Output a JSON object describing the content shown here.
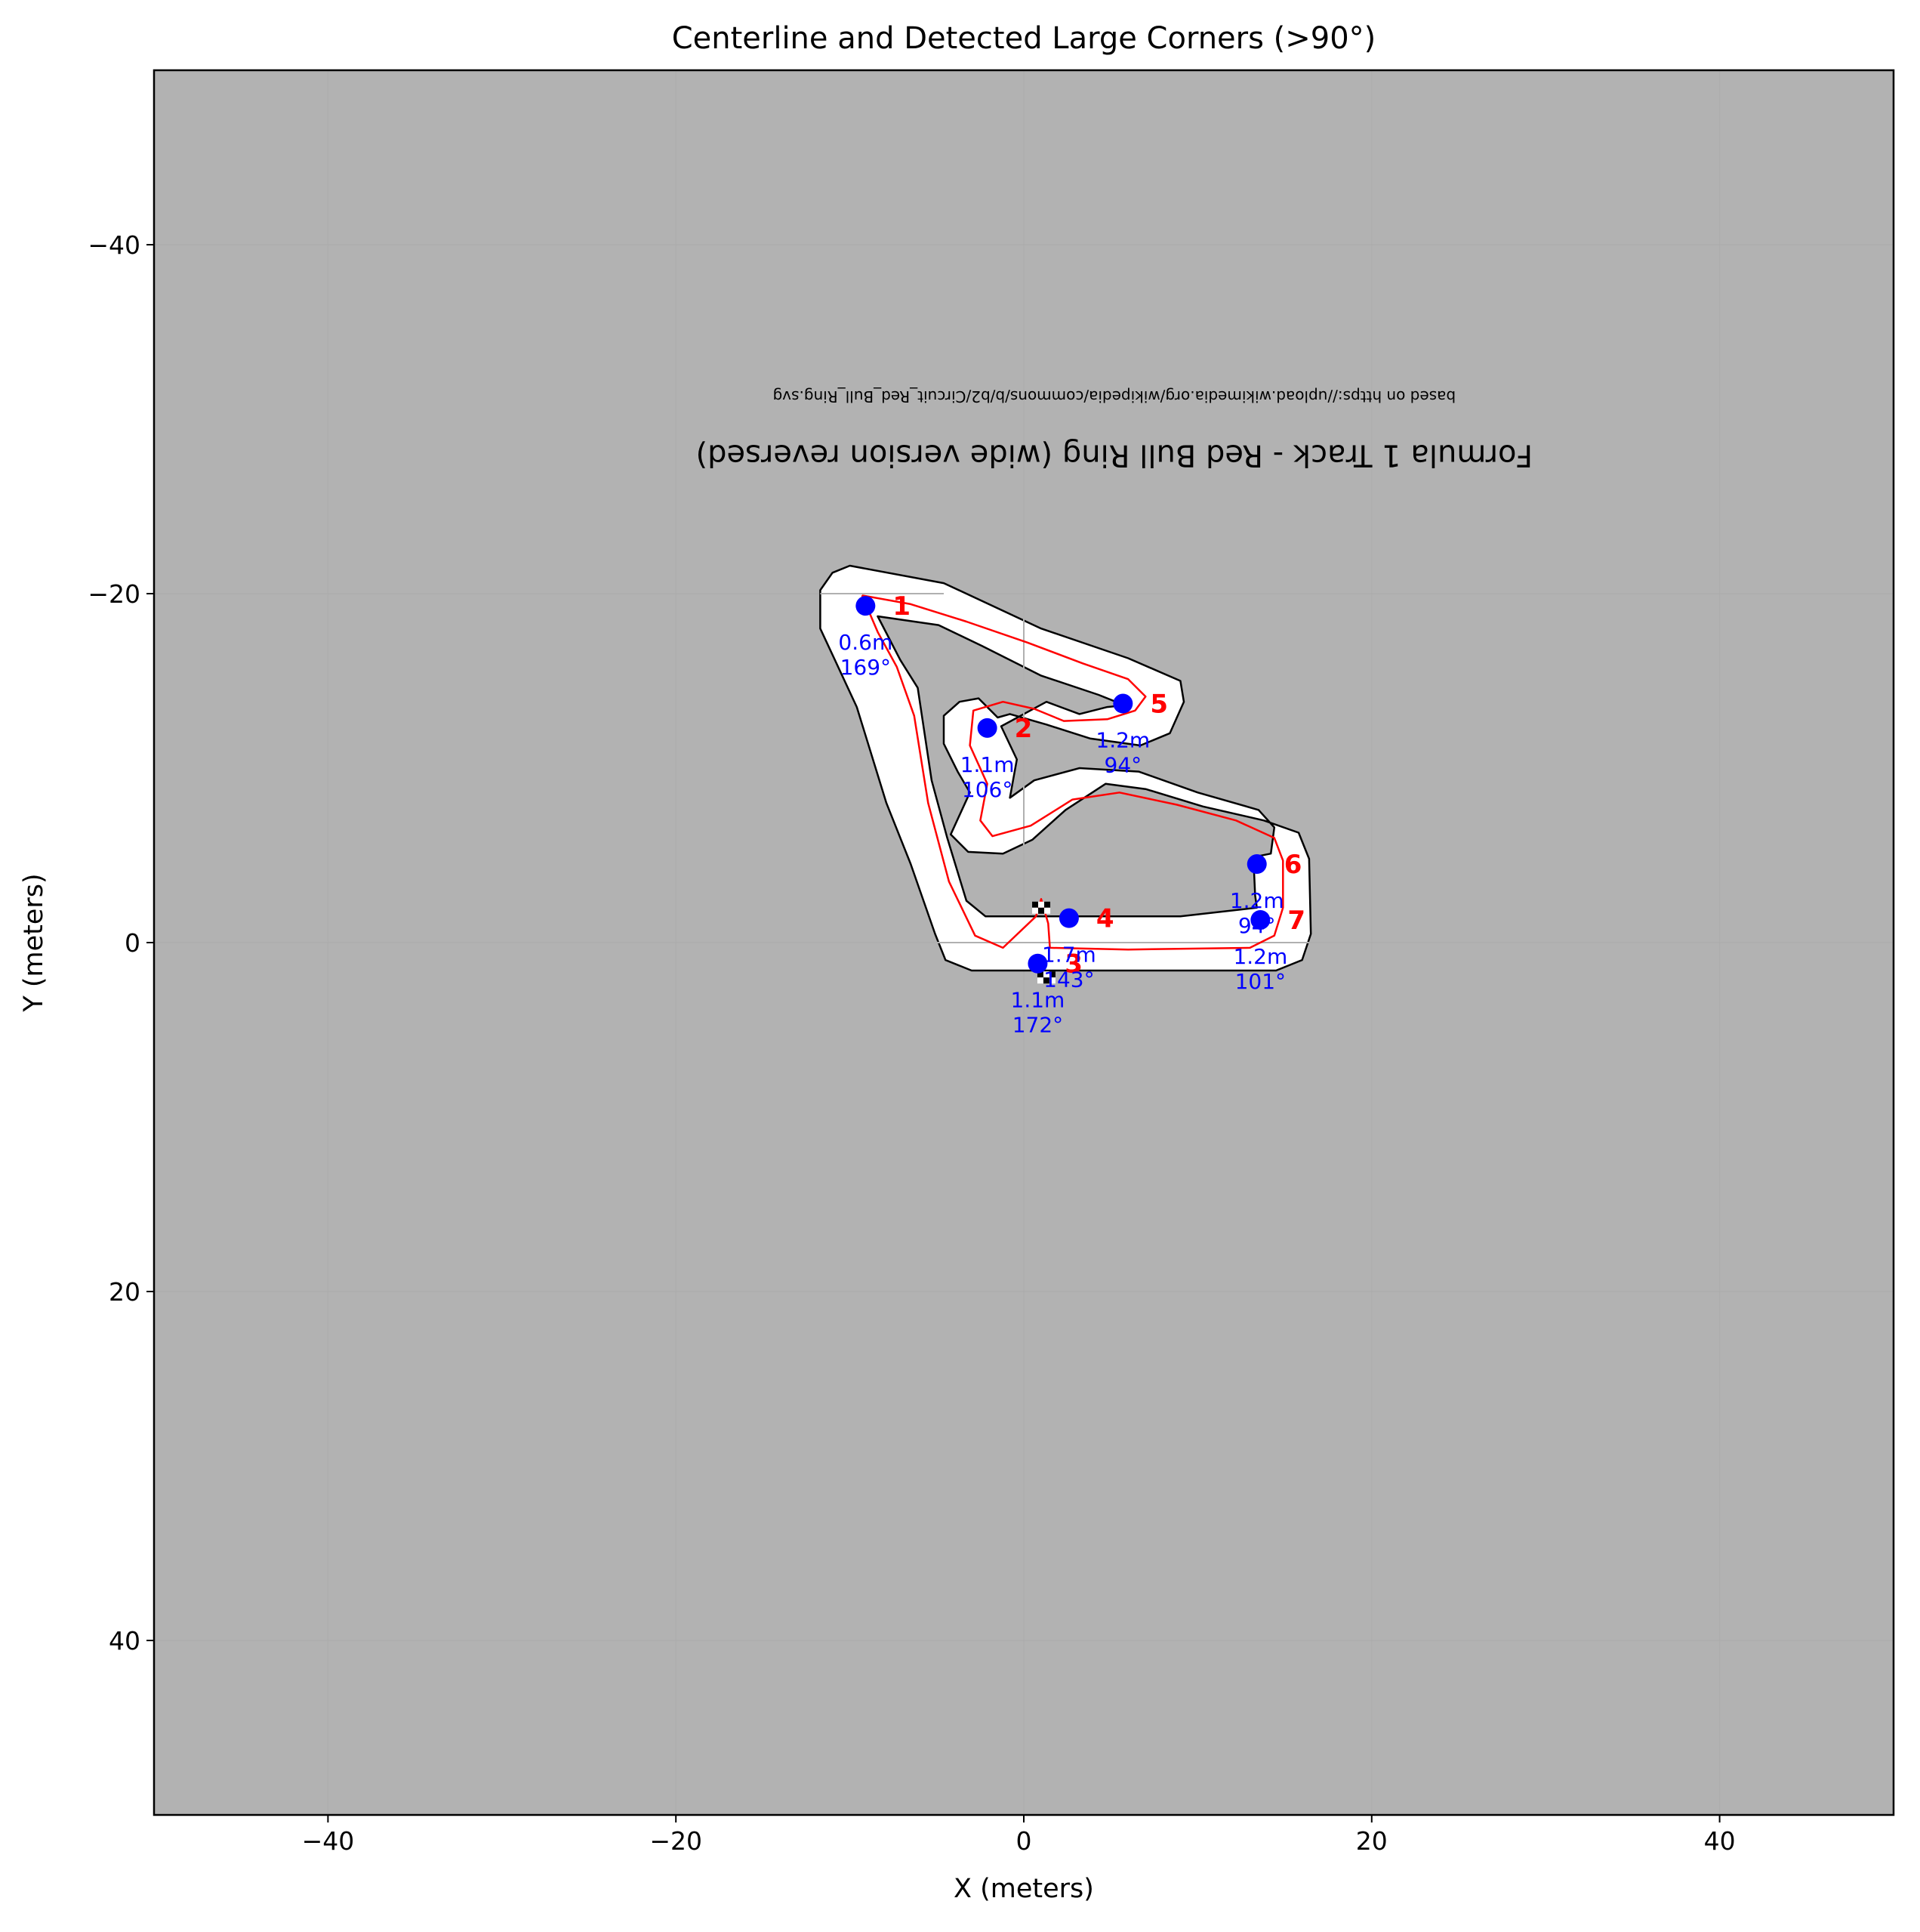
{
  "chart_data": {
    "type": "scatter",
    "title": "Centerline and Detected Large Corners (>90°)",
    "xlabel": "X (meters)",
    "ylabel": "Y (meters)",
    "xlim": [
      -50,
      50
    ],
    "ylim": [
      50,
      -50
    ],
    "y_inverted": true,
    "x_ticks": [
      -40,
      -20,
      0,
      20,
      40
    ],
    "y_ticks": [
      -40,
      -20,
      0,
      20,
      40
    ],
    "x_tick_labels": [
      "−40",
      "−20",
      "0",
      "20",
      "40"
    ],
    "y_tick_labels": [
      "−40",
      "−20",
      "0",
      "20",
      "40"
    ],
    "background_color": "#b2b2b2",
    "track_surface_color": "#ffffff",
    "track_edge_color": "#000000",
    "centerline_color": "#ff0000",
    "corner_point_color": "#0000ff",
    "corner_label_color": "#ff0000",
    "inset_title": "Formula 1 Track - Red Bull Ring (wide version reversed)",
    "inset_credit": "based on https://upload.wikimedia.org/wikipedia/commons/b/b2/Circuit_Red_Bull_Ring.svg",
    "track_outline": [
      [
        -11.7,
        -20.2
      ],
      [
        -11.0,
        -21.2
      ],
      [
        -10.0,
        -21.6
      ],
      [
        -4.6,
        -20.6
      ],
      [
        1.0,
        -18.0
      ],
      [
        6.0,
        -16.3
      ],
      [
        9.0,
        -15.0
      ],
      [
        9.2,
        -13.8
      ],
      [
        8.4,
        -12.0
      ],
      [
        6.7,
        -11.3
      ],
      [
        3.8,
        -11.7
      ],
      [
        1.3,
        -12.5
      ],
      [
        -0.8,
        -13.1
      ],
      [
        -1.5,
        -12.9
      ],
      [
        -2.6,
        -14.0
      ],
      [
        -3.7,
        -13.8
      ],
      [
        -4.6,
        -13.0
      ],
      [
        -4.6,
        -11.4
      ],
      [
        -3.8,
        -9.8
      ],
      [
        -3.1,
        -8.6
      ],
      [
        -4.2,
        -6.2
      ],
      [
        -3.2,
        -5.2
      ],
      [
        -1.2,
        -5.1
      ],
      [
        0.5,
        -5.9
      ],
      [
        2.4,
        -7.6
      ],
      [
        4.7,
        -9.1
      ],
      [
        7.0,
        -8.8
      ],
      [
        10.3,
        -7.8
      ],
      [
        13.8,
        -7.0
      ],
      [
        15.8,
        -6.3
      ],
      [
        16.4,
        -4.8
      ],
      [
        16.5,
        -0.5
      ],
      [
        16.0,
        1.0
      ],
      [
        14.5,
        1.6
      ],
      [
        5.0,
        1.6
      ],
      [
        -3.0,
        1.6
      ],
      [
        -4.5,
        1.0
      ],
      [
        -5.1,
        -0.5
      ],
      [
        -6.5,
        -4.5
      ],
      [
        -7.9,
        -8.0
      ],
      [
        -9.6,
        -13.5
      ],
      [
        -11.0,
        -16.5
      ],
      [
        -11.7,
        -18.0
      ],
      [
        -11.7,
        -20.2
      ]
    ],
    "track_inner_hole": [
      [
        -8.4,
        -18.7
      ],
      [
        -4.9,
        -18.2
      ],
      [
        -2.4,
        -17.0
      ],
      [
        1.0,
        -15.3
      ],
      [
        4.3,
        -14.2
      ],
      [
        5.8,
        -13.6
      ],
      [
        4.8,
        -13.5
      ],
      [
        3.2,
        -13.1
      ],
      [
        1.3,
        -13.8
      ],
      [
        -1.3,
        -12.4
      ],
      [
        -0.4,
        -10.5
      ],
      [
        -0.8,
        -8.3
      ],
      [
        0.6,
        -9.3
      ],
      [
        3.2,
        -10.0
      ],
      [
        6.6,
        -9.8
      ],
      [
        10.0,
        -8.6
      ],
      [
        13.5,
        -7.6
      ],
      [
        14.4,
        -6.6
      ],
      [
        14.2,
        -5.1
      ],
      [
        13.2,
        -4.9
      ],
      [
        13.3,
        -2.7
      ],
      [
        13.4,
        -2.0
      ],
      [
        9.0,
        -1.5
      ],
      [
        2.2,
        -1.5
      ],
      [
        -2.2,
        -1.5
      ],
      [
        -3.3,
        -2.4
      ],
      [
        -4.4,
        -6.0
      ],
      [
        -5.3,
        -9.3
      ],
      [
        -6.1,
        -14.6
      ],
      [
        -7.1,
        -16.2
      ],
      [
        -8.4,
        -18.7
      ]
    ],
    "centerline": [
      [
        -9.3,
        -19.9
      ],
      [
        -6.5,
        -19.4
      ],
      [
        -3.3,
        -18.4
      ],
      [
        0.2,
        -17.2
      ],
      [
        3.4,
        -16.0
      ],
      [
        6.0,
        -15.1
      ],
      [
        7.0,
        -14.1
      ],
      [
        6.4,
        -13.3
      ],
      [
        4.8,
        -12.8
      ],
      [
        2.3,
        -12.7
      ],
      [
        0.6,
        -13.4
      ],
      [
        -1.2,
        -13.8
      ],
      [
        -2.9,
        -13.3
      ],
      [
        -3.1,
        -11.3
      ],
      [
        -2.1,
        -9.1
      ],
      [
        -2.5,
        -7.0
      ],
      [
        -1.8,
        -6.1
      ],
      [
        0.4,
        -6.7
      ],
      [
        2.8,
        -8.2
      ],
      [
        5.5,
        -8.6
      ],
      [
        8.8,
        -7.9
      ],
      [
        12.2,
        -7.0
      ],
      [
        14.4,
        -6.0
      ],
      [
        14.9,
        -4.7
      ],
      [
        14.9,
        -2.0
      ],
      [
        14.4,
        -0.4
      ],
      [
        13.0,
        0.3
      ],
      [
        6.0,
        0.4
      ],
      [
        1.5,
        0.3
      ],
      [
        1.4,
        -1.1
      ],
      [
        1.0,
        -2.5
      ],
      [
        0.7,
        -1.5
      ],
      [
        -1.2,
        0.3
      ],
      [
        -2.8,
        -0.4
      ],
      [
        -4.3,
        -3.5
      ],
      [
        -5.5,
        -8.0
      ],
      [
        -6.3,
        -13.0
      ],
      [
        -7.3,
        -15.8
      ],
      [
        -8.4,
        -17.8
      ],
      [
        -9.3,
        -19.9
      ]
    ],
    "corners": [
      {
        "id": "1",
        "x": -9.1,
        "y": -19.3,
        "distance": "0.6m",
        "angle": "169°"
      },
      {
        "id": "2",
        "x": -2.1,
        "y": -12.3,
        "distance": "1.1m",
        "angle": "106°"
      },
      {
        "id": "3",
        "x": 0.8,
        "y": 1.2,
        "distance": "1.1m",
        "angle": "172°"
      },
      {
        "id": "4",
        "x": 2.6,
        "y": -1.4,
        "distance": "1.7m",
        "angle": "143°"
      },
      {
        "id": "5",
        "x": 5.7,
        "y": -13.7,
        "distance": "1.2m",
        "angle": "94°"
      },
      {
        "id": "6",
        "x": 13.4,
        "y": -4.5,
        "distance": "1.2m",
        "angle": "94°"
      },
      {
        "id": "7",
        "x": 13.6,
        "y": -1.3,
        "distance": "1.2m",
        "angle": "101°"
      }
    ]
  }
}
